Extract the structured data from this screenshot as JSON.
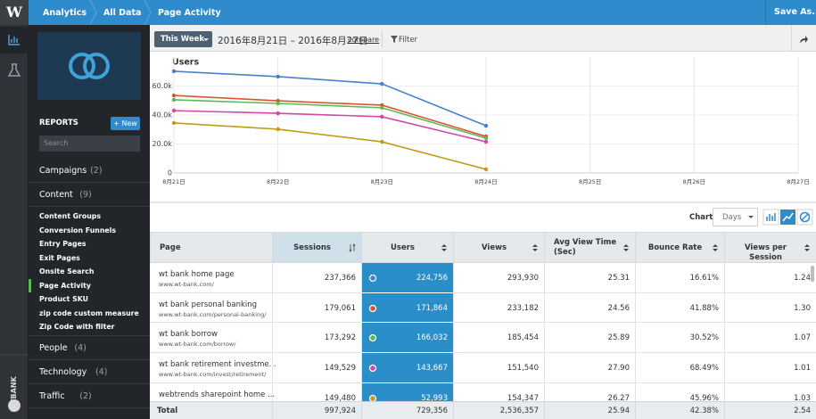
{
  "topbar": {
    "logo": "W",
    "breadcrumbs": [
      "Analytics",
      "All Data",
      "Page Activity"
    ],
    "save": "Save As..."
  },
  "rail": {
    "account": "WTBANK"
  },
  "sidebar": {
    "reports": "REPORTS",
    "new": "+ New",
    "search": "Search",
    "menu": [
      {
        "label": "Campaigns",
        "count": "(2)"
      },
      {
        "label": "Content",
        "count": "(9)",
        "items": [
          {
            "label": "Content Groups"
          },
          {
            "label": "Conversion Funnels"
          },
          {
            "label": "Entry Pages"
          },
          {
            "label": "Exit Pages"
          },
          {
            "label": "Onsite Search"
          },
          {
            "label": "Page Activity",
            "active": true
          },
          {
            "label": "Product SKU"
          },
          {
            "label": "zip code custom measure"
          },
          {
            "label": "Zip Code with filter"
          }
        ]
      },
      {
        "label": "People",
        "count": "(4)"
      },
      {
        "label": "Technology",
        "count": "(4)"
      },
      {
        "label": "Traffic",
        "count": "(2)"
      }
    ]
  },
  "toolbar": {
    "period": "This Week",
    "dates": "2016年8月21日 – 2016年8月27日",
    "compare": "compare",
    "filter": "Filter"
  },
  "chart_data": {
    "type": "line",
    "title": "Users",
    "categories": [
      "8月21日",
      "8月22日",
      "8月23日",
      "8月24日",
      "8月25日",
      "8月26日",
      "8月27日"
    ],
    "series": [
      {
        "color": "#4a7fd0",
        "values": [
          70200,
          66500,
          61500,
          32600,
          null,
          null,
          null
        ]
      },
      {
        "color": "#d9552e",
        "values": [
          53500,
          49800,
          46800,
          25200,
          null,
          null,
          null
        ]
      },
      {
        "color": "#5cb85c",
        "values": [
          50500,
          48000,
          45000,
          24000,
          null,
          null,
          null
        ]
      },
      {
        "color": "#d04aa8",
        "values": [
          43000,
          41200,
          38800,
          21500,
          null,
          null,
          null
        ]
      },
      {
        "color": "#c49a1a",
        "values": [
          34500,
          30200,
          21500,
          2500,
          null,
          null,
          null
        ]
      }
    ],
    "ylim": [
      0,
      80000
    ],
    "yticks": [
      0,
      {
        "value": 20000,
        "label": "20.0k"
      },
      {
        "value": 40000,
        "label": "40.0k"
      },
      {
        "value": 60000,
        "label": "60.0k"
      }
    ],
    "grid": true
  },
  "chart_controls": {
    "label": "Chart",
    "interval": "Days"
  },
  "table": {
    "columns": [
      {
        "label": "Page"
      },
      {
        "label": "Sessions",
        "sorted": true
      },
      {
        "label": "Users",
        "highlighted": true
      },
      {
        "label": "Views"
      },
      {
        "label": "Avg View Time (Sec)"
      },
      {
        "label": "Bounce Rate"
      },
      {
        "label": "Views per Session"
      }
    ],
    "rows": [
      {
        "page": "wt bank home page",
        "url": "www.wt-bank.com/",
        "cells": [
          "237,366",
          "224,756",
          "293,930",
          "25.31",
          "16.61%",
          "1.24"
        ]
      },
      {
        "page": "wt bank personal banking",
        "url": "www.wt-bank.com/personal-banking/",
        "cells": [
          "179,061",
          "171,864",
          "233,182",
          "24.56",
          "41.88%",
          "1.30"
        ]
      },
      {
        "page": "wt bank borrow",
        "url": "www.wt-bank.com/borrow/",
        "cells": [
          "173,292",
          "166,032",
          "185,454",
          "25.89",
          "30.52%",
          "1.07"
        ]
      },
      {
        "page": "wt bank retirement investme...",
        "url": "www.wt-bank.com/invest/retirement/",
        "cells": [
          "149,529",
          "143,667",
          "151,540",
          "27.90",
          "68.49%",
          "1.01"
        ]
      },
      {
        "page": "webtrends sharepoint home ...",
        "cells": [
          "149,480",
          "52,993",
          "154,347",
          "26.27",
          "45.96%",
          "1.03"
        ]
      }
    ],
    "total": {
      "label": "Total",
      "cells": [
        "997,924",
        "729,356",
        "2,536,357",
        "25.94",
        "42.38%",
        "2.54"
      ]
    }
  }
}
